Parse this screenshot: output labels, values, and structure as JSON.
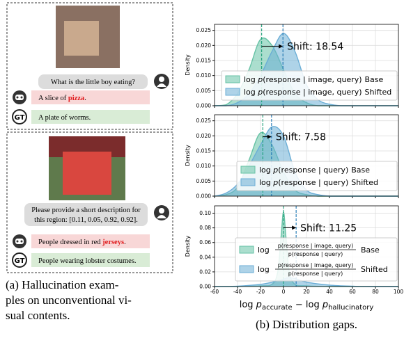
{
  "panel_a": {
    "gt_badge": "GT",
    "examples": [
      {
        "question": [
          "What is the little boy eating?"
        ],
        "answer": {
          "before": "A slice of ",
          "highlight": "pizza",
          "after": "."
        },
        "ground_truth": "A plate of worms."
      },
      {
        "question": [
          "Please provide a short description for",
          "this region: [0.11, 0.05, 0.92, 0.92]."
        ],
        "answer": {
          "before": "People dressed in red ",
          "highlight": "jerseys",
          "after": "."
        },
        "ground_truth": "People wearing lobster costumes."
      }
    ],
    "caption": [
      "(a)  Hallucination  exam-",
      "ples on unconventional vi-",
      "sual contents."
    ]
  },
  "panel_b": {
    "caption": "(b) Distribution gaps.",
    "x_label": [
      "log ",
      "p",
      "accurate",
      " − log ",
      "p",
      "hallucinatory"
    ]
  },
  "chart_data": [
    {
      "type": "area",
      "y_label": "Density",
      "xlim": [
        -60,
        100
      ],
      "xticks": [
        -60,
        -40,
        -20,
        0,
        20,
        40,
        60,
        80,
        100
      ],
      "ylim": [
        0,
        0.027
      ],
      "yticks": [
        {
          "value": 0,
          "label": "0.000"
        },
        {
          "value": 0.005,
          "label": "0.005"
        },
        {
          "value": 0.01,
          "label": "0.010"
        },
        {
          "value": 0.015,
          "label": "0.015"
        },
        {
          "value": 0.02,
          "label": "0.020"
        },
        {
          "value": 0.025,
          "label": "0.025"
        }
      ],
      "grid": true,
      "annotation": "Shift: 18.54",
      "legend_label": {
        "func": "log ",
        "var": "p",
        "arg": "(response | image, query)"
      },
      "x": [
        -60,
        -50,
        -40,
        -30,
        -20,
        -10,
        0,
        10,
        20,
        30,
        40,
        50,
        60,
        70,
        80,
        90,
        100
      ],
      "series": [
        {
          "name": "Base",
          "color": "#66c2a5",
          "mean": -19,
          "values": [
            0,
            0.0003,
            0.004,
            0.012,
            0.022,
            0.02,
            0.012,
            0.004,
            0.001,
            0,
            0,
            0,
            0,
            0,
            0,
            0,
            0
          ]
        },
        {
          "name": "Shifted",
          "color": "#6baed6",
          "mean": -0.5,
          "values": [
            0,
            0,
            0.001,
            0.004,
            0.01,
            0.018,
            0.024,
            0.018,
            0.007,
            0.002,
            0.0005,
            0,
            0,
            0,
            0,
            0,
            0
          ]
        }
      ]
    },
    {
      "type": "area",
      "y_label": "Density",
      "xlim": [
        -60,
        100
      ],
      "xticks": [
        -60,
        -40,
        -20,
        0,
        20,
        40,
        60,
        80,
        100
      ],
      "ylim": [
        0,
        0.027
      ],
      "yticks": [
        {
          "value": 0,
          "label": "0.000"
        },
        {
          "value": 0.005,
          "label": "0.005"
        },
        {
          "value": 0.01,
          "label": "0.010"
        },
        {
          "value": 0.015,
          "label": "0.015"
        },
        {
          "value": 0.02,
          "label": "0.020"
        },
        {
          "value": 0.025,
          "label": "0.025"
        }
      ],
      "grid": true,
      "annotation": "Shift: 7.58",
      "legend_label": {
        "func": "log ",
        "var": "p",
        "arg": "(response | query)"
      },
      "x": [
        -60,
        -50,
        -40,
        -30,
        -20,
        -10,
        0,
        10,
        20,
        30,
        40,
        50,
        60,
        70,
        80,
        90,
        100
      ],
      "series": [
        {
          "name": "Base",
          "color": "#66c2a5",
          "mean": -18,
          "values": [
            0,
            0.0005,
            0.003,
            0.012,
            0.021,
            0.017,
            0.008,
            0.002,
            0.0005,
            0,
            0,
            0,
            0,
            0,
            0,
            0,
            0
          ]
        },
        {
          "name": "Shifted",
          "color": "#6baed6",
          "mean": -10.4,
          "values": [
            0,
            0.001,
            0.004,
            0.01,
            0.017,
            0.023,
            0.02,
            0.008,
            0.002,
            0.0005,
            0,
            0,
            0,
            0,
            0,
            0,
            0
          ]
        }
      ]
    },
    {
      "type": "area",
      "y_label": "Density",
      "xlim": [
        -60,
        100
      ],
      "xticks": [
        -60,
        -40,
        -20,
        0,
        20,
        40,
        60,
        80,
        100
      ],
      "ylim": [
        0,
        0.11
      ],
      "yticks": [
        {
          "value": 0,
          "label": "0.00"
        },
        {
          "value": 0.02,
          "label": "0.02"
        },
        {
          "value": 0.04,
          "label": "0.04"
        },
        {
          "value": 0.06,
          "label": "0.06"
        },
        {
          "value": 0.08,
          "label": "0.08"
        },
        {
          "value": 0.1,
          "label": "0.10"
        }
      ],
      "grid": true,
      "annotation": "Shift: 11.25",
      "legend_label": {
        "func": "log ",
        "numerator": "p(response | image, query)",
        "denominator": "p(response | query)"
      },
      "x": [
        -60,
        -40,
        -20,
        -10,
        -5,
        -2,
        0,
        2,
        5,
        10,
        20,
        40,
        60,
        80,
        100
      ],
      "series": [
        {
          "name": "Base",
          "color": "#66c2a5",
          "mean": 0,
          "values": [
            0,
            0,
            0.001,
            0.003,
            0.02,
            0.07,
            0.102,
            0.07,
            0.02,
            0.003,
            0.001,
            0,
            0,
            0,
            0
          ]
        },
        {
          "name": "Shifted",
          "color": "#6baed6",
          "mean": 11,
          "values": [
            0,
            0.0005,
            0.003,
            0.006,
            0.008,
            0.009,
            0.01,
            0.011,
            0.012,
            0.011,
            0.006,
            0.002,
            0.0005,
            0,
            0
          ]
        }
      ]
    }
  ]
}
